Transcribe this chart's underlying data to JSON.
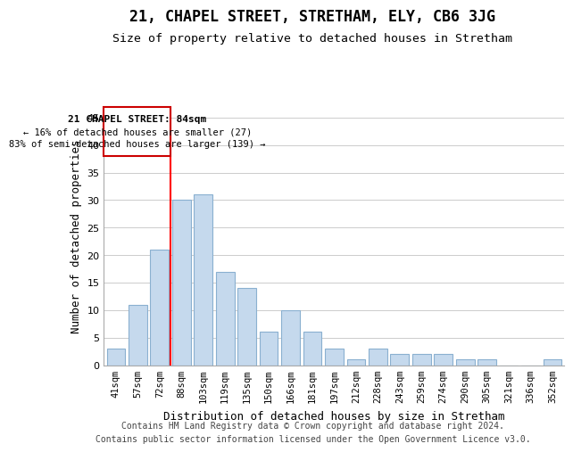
{
  "title": "21, CHAPEL STREET, STRETHAM, ELY, CB6 3JG",
  "subtitle": "Size of property relative to detached houses in Stretham",
  "xlabel": "Distribution of detached houses by size in Stretham",
  "ylabel": "Number of detached properties",
  "categories": [
    "41sqm",
    "57sqm",
    "72sqm",
    "88sqm",
    "103sqm",
    "119sqm",
    "135sqm",
    "150sqm",
    "166sqm",
    "181sqm",
    "197sqm",
    "212sqm",
    "228sqm",
    "243sqm",
    "259sqm",
    "274sqm",
    "290sqm",
    "305sqm",
    "321sqm",
    "336sqm",
    "352sqm"
  ],
  "values": [
    3,
    11,
    21,
    30,
    31,
    17,
    14,
    6,
    10,
    6,
    3,
    1,
    3,
    2,
    2,
    2,
    1,
    1,
    0,
    0,
    1
  ],
  "bar_color": "#c5d9ed",
  "bar_edge_color": "#8ab0d0",
  "annotation_box_edge_color": "#cc0000",
  "annotation_box_fill": "#ffffff",
  "annotation_text_line1": "21 CHAPEL STREET: 84sqm",
  "annotation_text_line2": "← 16% of detached houses are smaller (27)",
  "annotation_text_line3": "83% of semi-detached houses are larger (139) →",
  "red_line_x": 2.5,
  "ylim": [
    0,
    47
  ],
  "yticks": [
    0,
    5,
    10,
    15,
    20,
    25,
    30,
    35,
    40,
    45
  ],
  "footer_line1": "Contains HM Land Registry data © Crown copyright and database right 2024.",
  "footer_line2": "Contains public sector information licensed under the Open Government Licence v3.0.",
  "bg_color": "#ffffff",
  "grid_color": "#cccccc"
}
